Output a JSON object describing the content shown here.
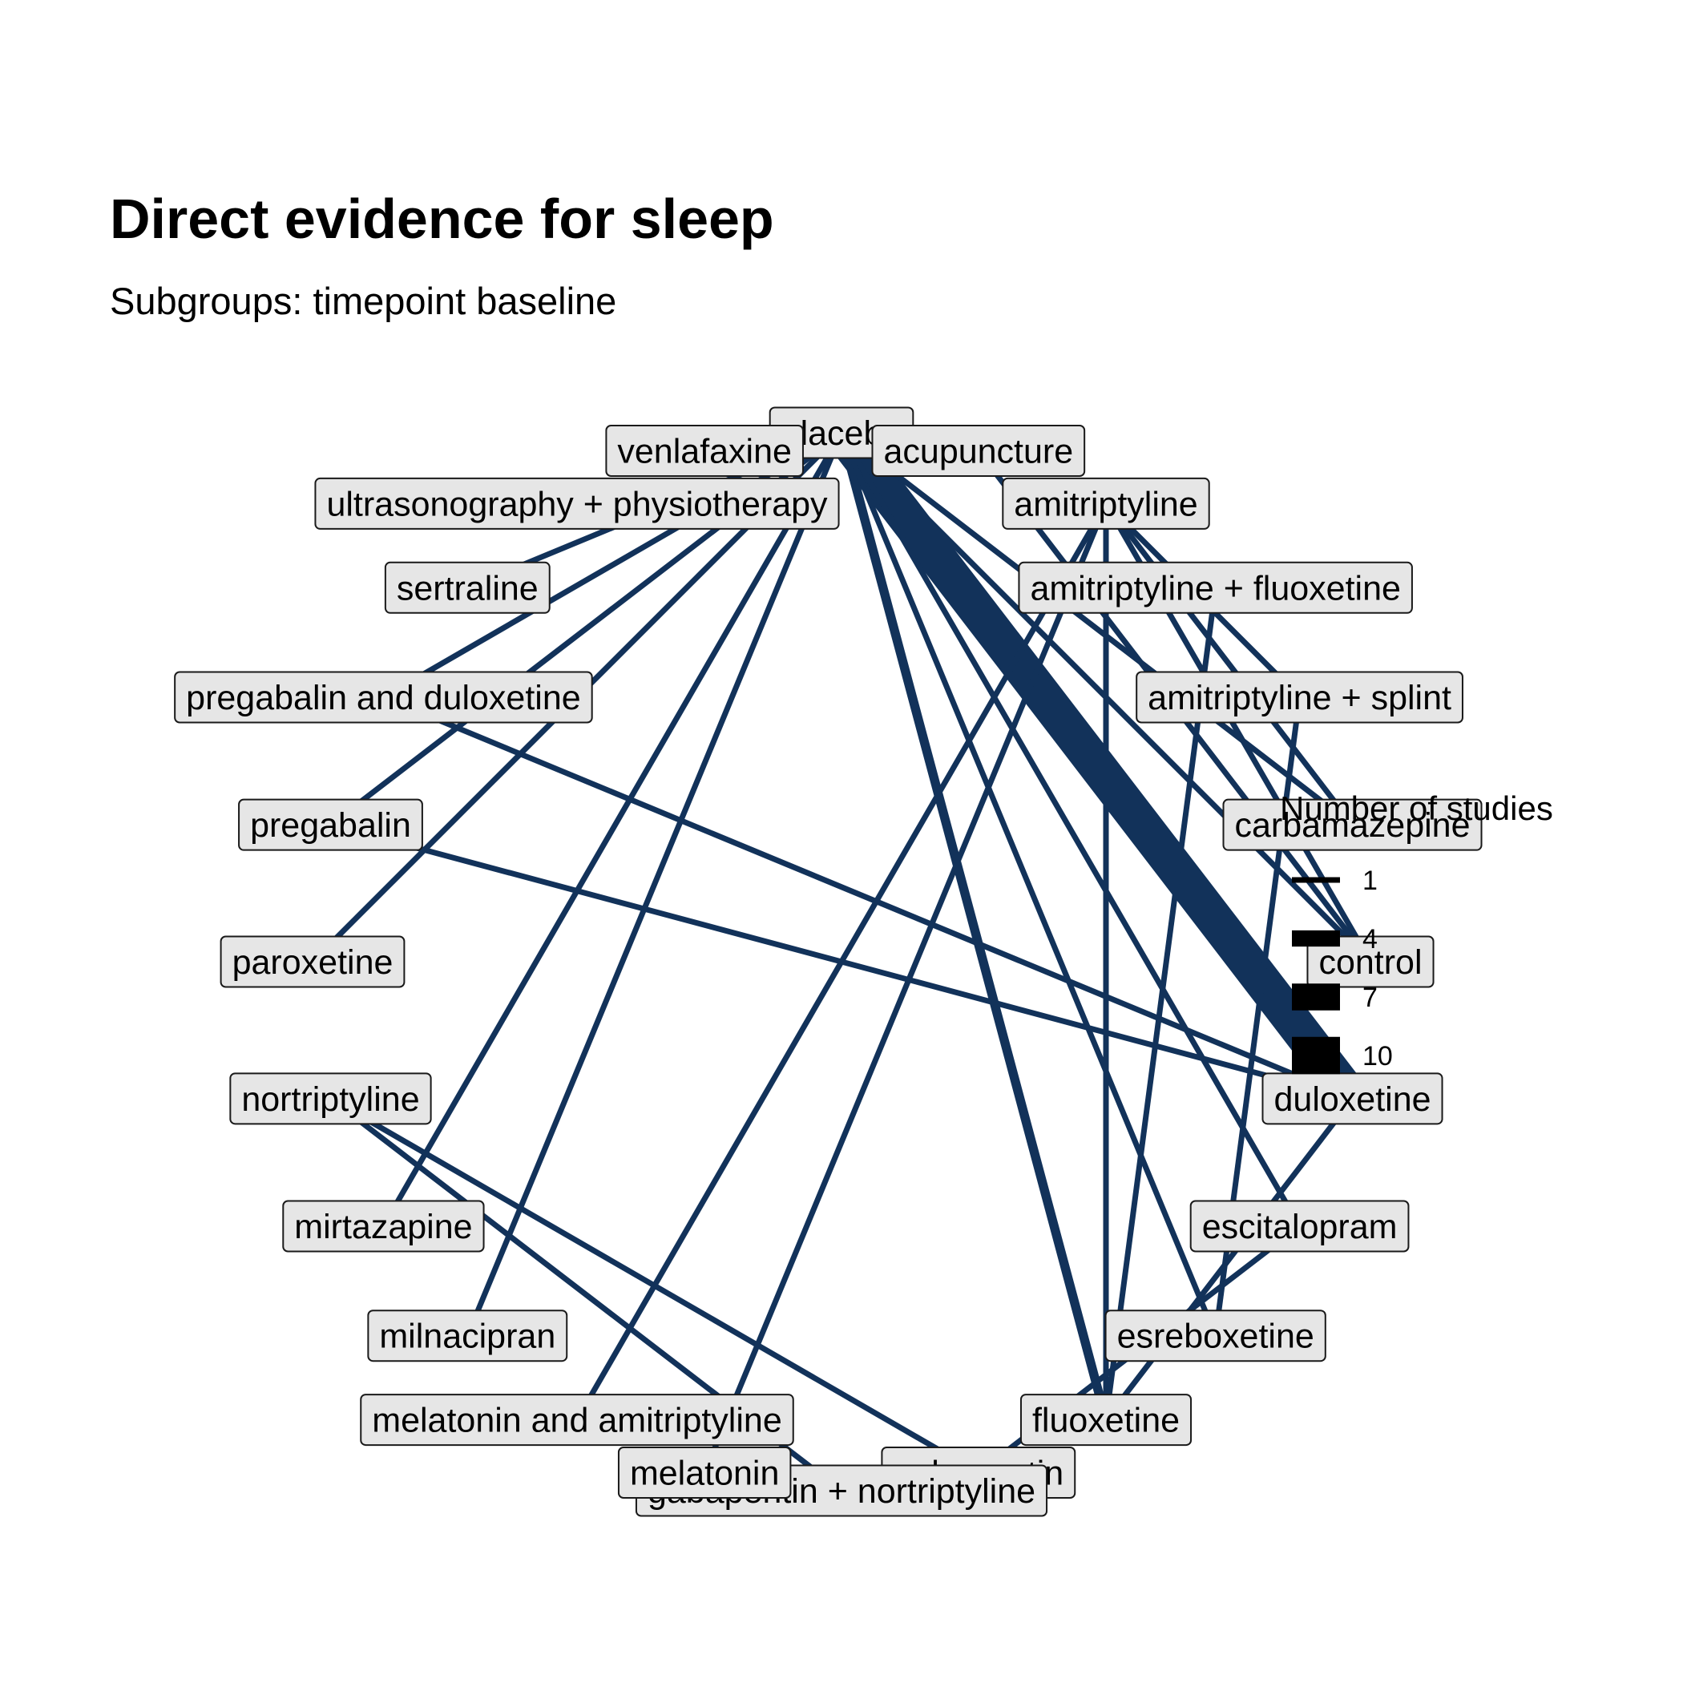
{
  "title": "Direct evidence for sleep",
  "subtitle": "Subgroups: timepoint baseline",
  "edge_color": "#12325a",
  "legend": {
    "title": "Number of studies",
    "items": [
      1,
      4,
      7,
      10
    ]
  },
  "chart_data": {
    "type": "network",
    "nodes": [
      "placebo",
      "acupuncture",
      "amitriptyline",
      "amitriptyline + fluoxetine",
      "amitriptyline + splint",
      "carbamazepine",
      "control",
      "duloxetine",
      "escitalopram",
      "esreboxetine",
      "fluoxetine",
      "gabapentin",
      "gabapentin + nortriptyline",
      "melatonin",
      "melatonin and amitriptyline",
      "milnacipran",
      "mirtazapine",
      "nortriptyline",
      "paroxetine",
      "pregabalin",
      "pregabalin and duloxetine",
      "sertraline",
      "ultrasonography + physiotherapy",
      "venlafaxine"
    ],
    "edges": [
      {
        "from": "placebo",
        "to": "duloxetine",
        "studies": 10
      },
      {
        "from": "placebo",
        "to": "fluoxetine",
        "studies": 2
      },
      {
        "from": "placebo",
        "to": "esreboxetine",
        "studies": 1
      },
      {
        "from": "placebo",
        "to": "escitalopram",
        "studies": 1
      },
      {
        "from": "placebo",
        "to": "carbamazepine",
        "studies": 1
      },
      {
        "from": "placebo",
        "to": "control",
        "studies": 1
      },
      {
        "from": "placebo",
        "to": "pregabalin",
        "studies": 1
      },
      {
        "from": "placebo",
        "to": "pregabalin and duloxetine",
        "studies": 1
      },
      {
        "from": "placebo",
        "to": "paroxetine",
        "studies": 1
      },
      {
        "from": "placebo",
        "to": "mirtazapine",
        "studies": 1
      },
      {
        "from": "placebo",
        "to": "milnacipran",
        "studies": 1
      },
      {
        "from": "placebo",
        "to": "sertraline",
        "studies": 1
      },
      {
        "from": "acupuncture",
        "to": "control",
        "studies": 1
      },
      {
        "from": "amitriptyline",
        "to": "fluoxetine",
        "studies": 1
      },
      {
        "from": "amitriptyline",
        "to": "melatonin",
        "studies": 1
      },
      {
        "from": "amitriptyline",
        "to": "melatonin and amitriptyline",
        "studies": 1
      },
      {
        "from": "amitriptyline",
        "to": "carbamazepine",
        "studies": 1
      },
      {
        "from": "amitriptyline",
        "to": "control",
        "studies": 1
      },
      {
        "from": "amitriptyline",
        "to": "amitriptyline + splint",
        "studies": 1
      },
      {
        "from": "amitriptyline + fluoxetine",
        "to": "fluoxetine",
        "studies": 1
      },
      {
        "from": "amitriptyline + splint",
        "to": "esreboxetine",
        "studies": 1
      },
      {
        "from": "duloxetine",
        "to": "pregabalin",
        "studies": 1
      },
      {
        "from": "duloxetine",
        "to": "pregabalin and duloxetine",
        "studies": 1
      },
      {
        "from": "duloxetine",
        "to": "fluoxetine",
        "studies": 1
      },
      {
        "from": "escitalopram",
        "to": "gabapentin",
        "studies": 1
      },
      {
        "from": "nortriptyline",
        "to": "gabapentin",
        "studies": 1
      },
      {
        "from": "nortriptyline",
        "to": "gabapentin + nortriptyline",
        "studies": 1
      }
    ]
  }
}
